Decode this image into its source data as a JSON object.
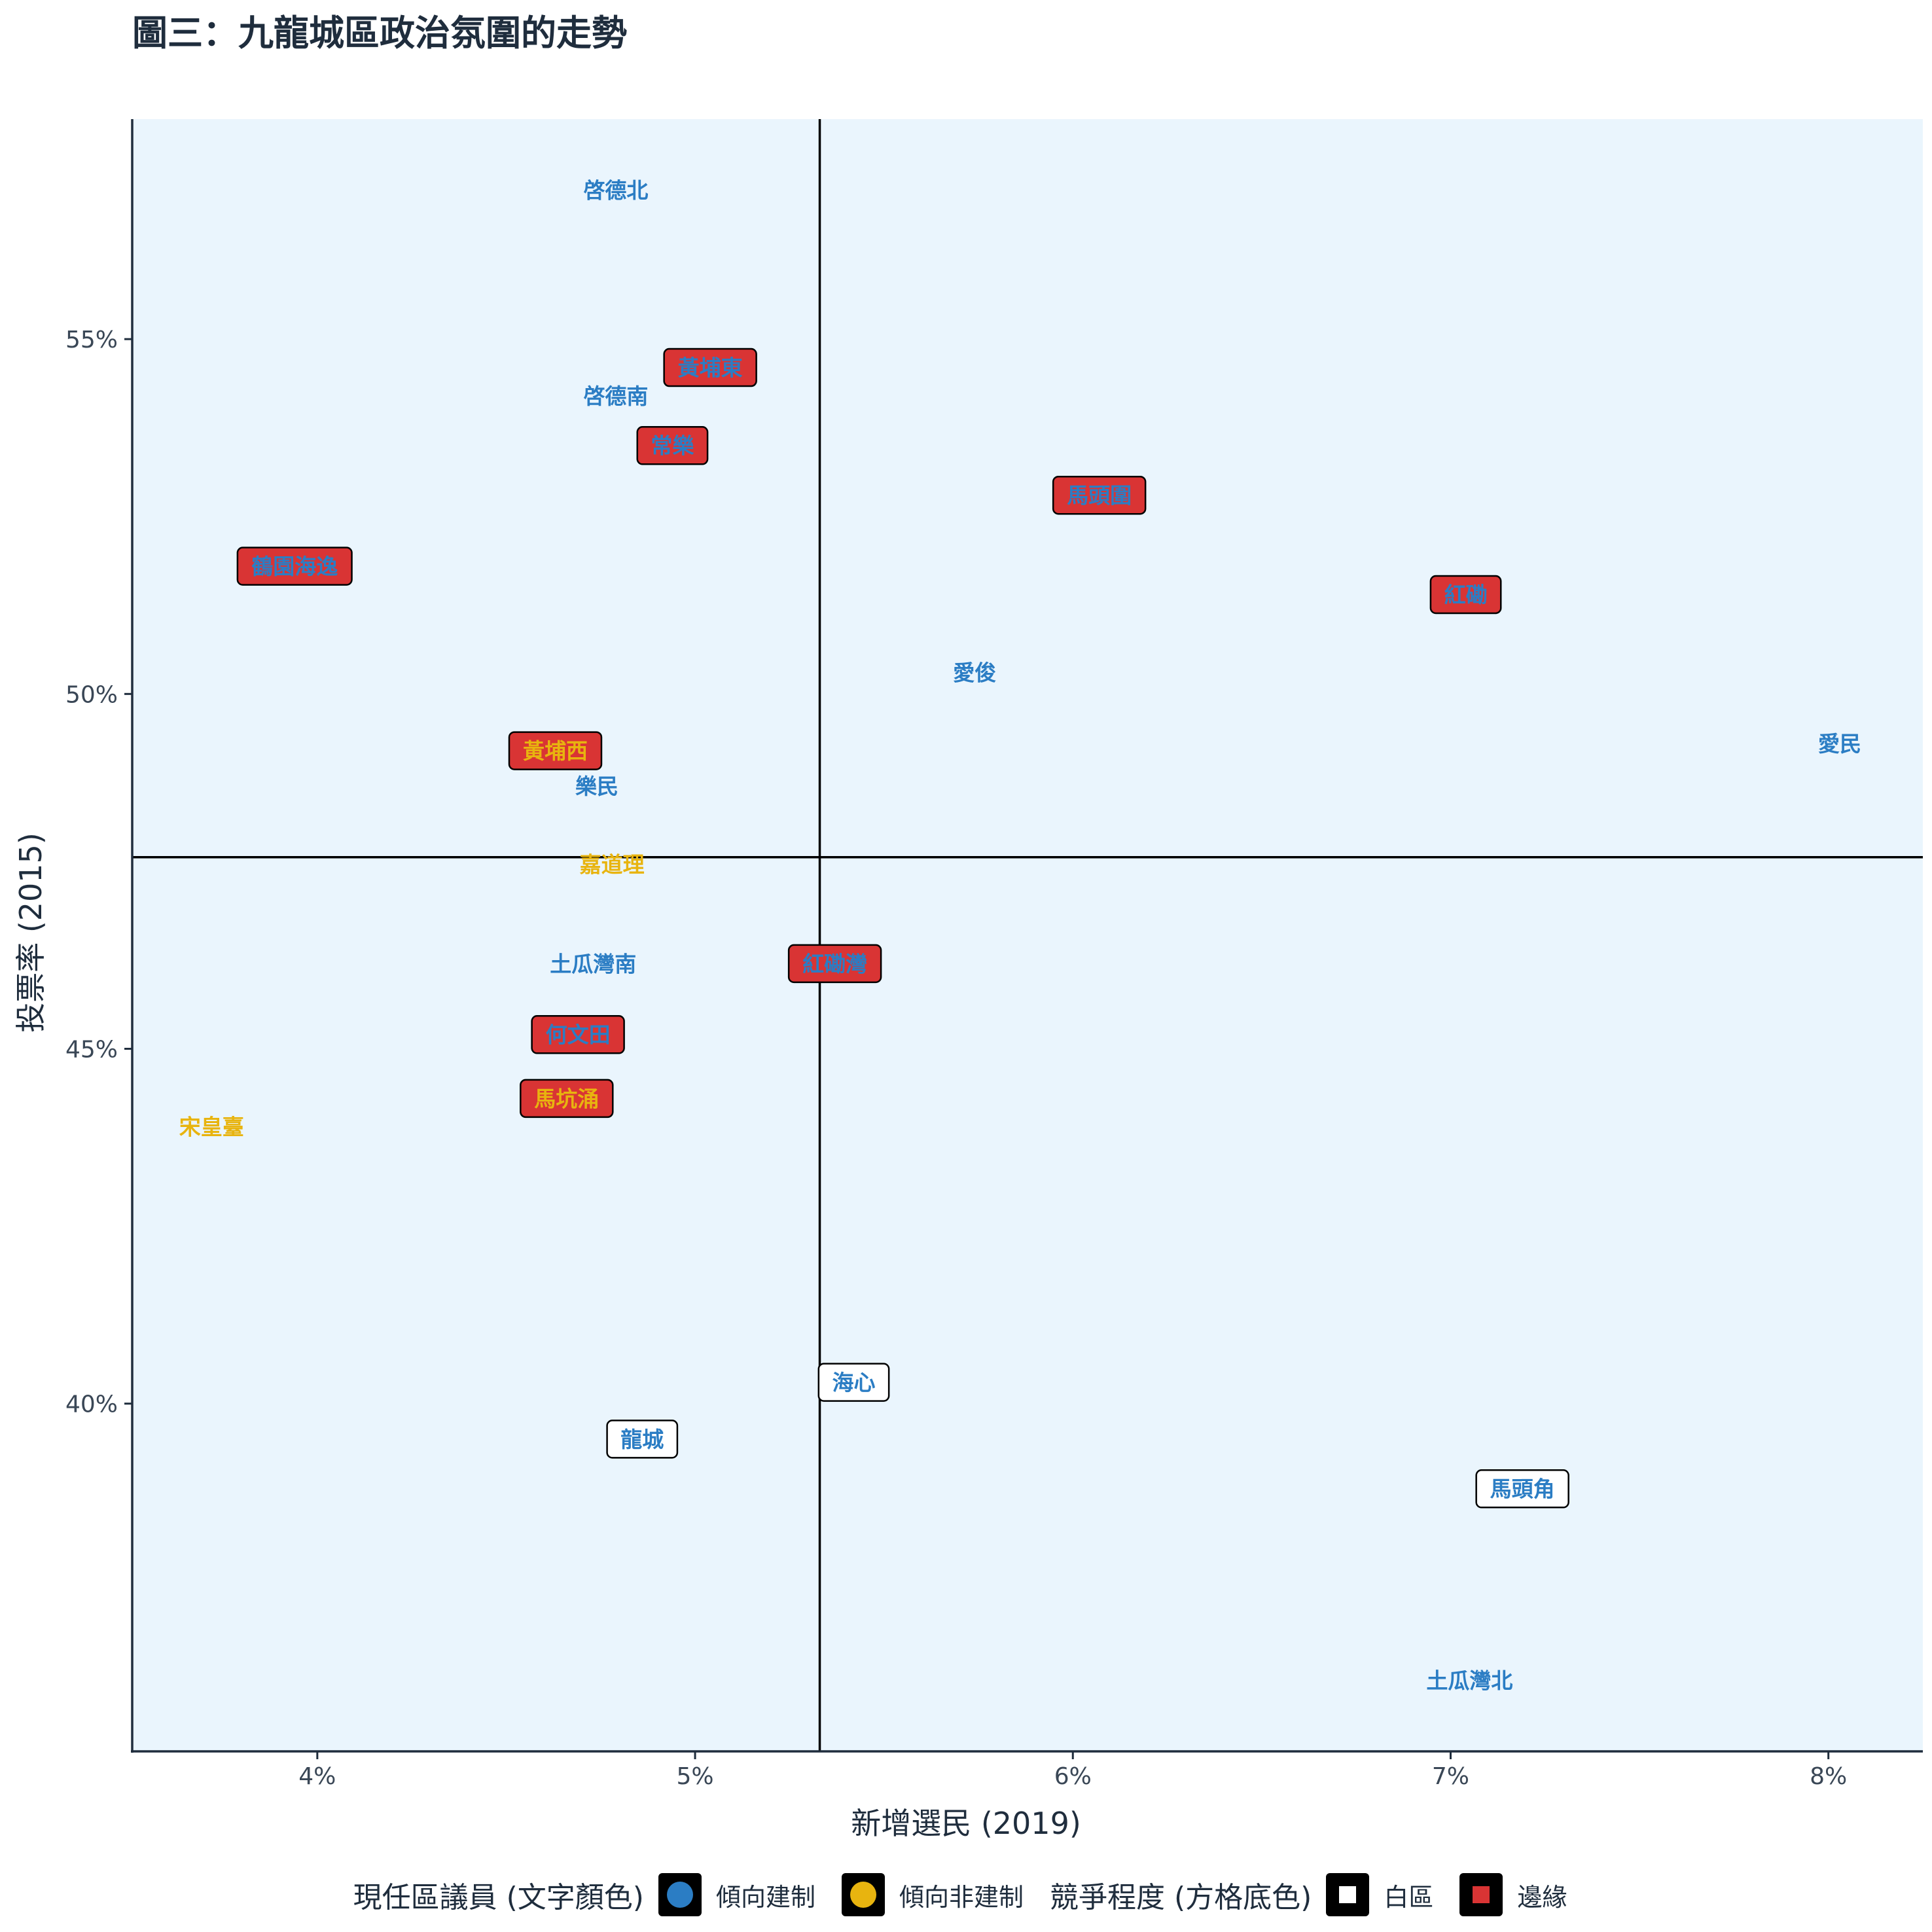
{
  "title": "圖三：九龍城區政治氛圍的走勢",
  "chart_data": {
    "type": "scatter",
    "title": "圖三：九龍城區政治氛圍的走勢",
    "xlabel": "新增選民 (2019)",
    "ylabel": "投票率 (2015)",
    "xlim": [
      3.51,
      8.25
    ],
    "ylim": [
      35.1,
      58.1
    ],
    "x_ticks": [
      4,
      5,
      6,
      7,
      8
    ],
    "x_tick_labels": [
      "4%",
      "5%",
      "6%",
      "7%",
      "8%"
    ],
    "y_ticks": [
      40,
      45,
      50,
      55
    ],
    "y_tick_labels": [
      "40%",
      "45%",
      "50%",
      "55%"
    ],
    "ref_x": 5.33,
    "ref_y": 47.7,
    "panel_background": "#eaf5fd",
    "grid": false,
    "legend_position": "bottom",
    "points": [
      {
        "label": "啓德北",
        "x": 4.79,
        "y": 57.1,
        "incumbent": "pro-establishment",
        "competition": "none"
      },
      {
        "label": "黃埔東",
        "x": 5.04,
        "y": 54.6,
        "incumbent": "pro-establishment",
        "competition": "marginal"
      },
      {
        "label": "啓德南",
        "x": 4.79,
        "y": 54.2,
        "incumbent": "pro-establishment",
        "competition": "none"
      },
      {
        "label": "常樂",
        "x": 4.94,
        "y": 53.5,
        "incumbent": "pro-establishment",
        "competition": "marginal"
      },
      {
        "label": "馬頭圍",
        "x": 6.07,
        "y": 52.8,
        "incumbent": "pro-establishment",
        "competition": "marginal"
      },
      {
        "label": "鶴園海逸",
        "x": 3.94,
        "y": 51.8,
        "incumbent": "pro-establishment",
        "competition": "marginal"
      },
      {
        "label": "紅磡",
        "x": 7.04,
        "y": 51.4,
        "incumbent": "pro-establishment",
        "competition": "marginal"
      },
      {
        "label": "愛俊",
        "x": 5.74,
        "y": 50.3,
        "incumbent": "pro-establishment",
        "competition": "none"
      },
      {
        "label": "愛民",
        "x": 8.03,
        "y": 49.3,
        "incumbent": "pro-establishment",
        "competition": "none"
      },
      {
        "label": "黃埔西",
        "x": 4.63,
        "y": 49.2,
        "incumbent": "non-establishment",
        "competition": "marginal"
      },
      {
        "label": "樂民",
        "x": 4.74,
        "y": 48.7,
        "incumbent": "pro-establishment",
        "competition": "none"
      },
      {
        "label": "嘉道理",
        "x": 4.78,
        "y": 47.6,
        "incumbent": "non-establishment",
        "competition": "none"
      },
      {
        "label": "土瓜灣南",
        "x": 4.73,
        "y": 46.2,
        "incumbent": "pro-establishment",
        "competition": "none"
      },
      {
        "label": "紅磡灣",
        "x": 5.37,
        "y": 46.2,
        "incumbent": "pro-establishment",
        "competition": "marginal"
      },
      {
        "label": "何文田",
        "x": 4.69,
        "y": 45.2,
        "incumbent": "pro-establishment",
        "competition": "marginal"
      },
      {
        "label": "馬坑涌",
        "x": 4.66,
        "y": 44.3,
        "incumbent": "non-establishment",
        "competition": "marginal"
      },
      {
        "label": "宋皇臺",
        "x": 3.72,
        "y": 43.9,
        "incumbent": "non-establishment",
        "competition": "none"
      },
      {
        "label": "海心",
        "x": 5.42,
        "y": 40.3,
        "incumbent": "pro-establishment",
        "competition": "white"
      },
      {
        "label": "龍城",
        "x": 4.86,
        "y": 39.5,
        "incumbent": "pro-establishment",
        "competition": "white"
      },
      {
        "label": "馬頭角",
        "x": 7.19,
        "y": 38.8,
        "incumbent": "pro-establishment",
        "competition": "white"
      },
      {
        "label": "土瓜灣北",
        "x": 7.05,
        "y": 36.1,
        "incumbent": "pro-establishment",
        "competition": "none"
      }
    ]
  },
  "legend": {
    "incumbent_title": "現任區議員 (文字顏色)",
    "incumbent_items": [
      {
        "label": "傾向建制",
        "color": "#2b7dc4"
      },
      {
        "label": "傾向非建制",
        "color": "#e8b40f"
      }
    ],
    "competition_title": "競爭程度 (方格底色)",
    "competition_items": [
      {
        "label": "白區",
        "color": "#ffffff"
      },
      {
        "label": "邊緣",
        "color": "#d93434"
      }
    ]
  },
  "colors": {
    "pro_establishment_text": "#2b7dc4",
    "non_establishment_text": "#e8b40f",
    "white_box": "#ffffff",
    "marginal_box": "#d93434",
    "panel": "#eaf5fd",
    "axis": "#1f2d3d"
  }
}
